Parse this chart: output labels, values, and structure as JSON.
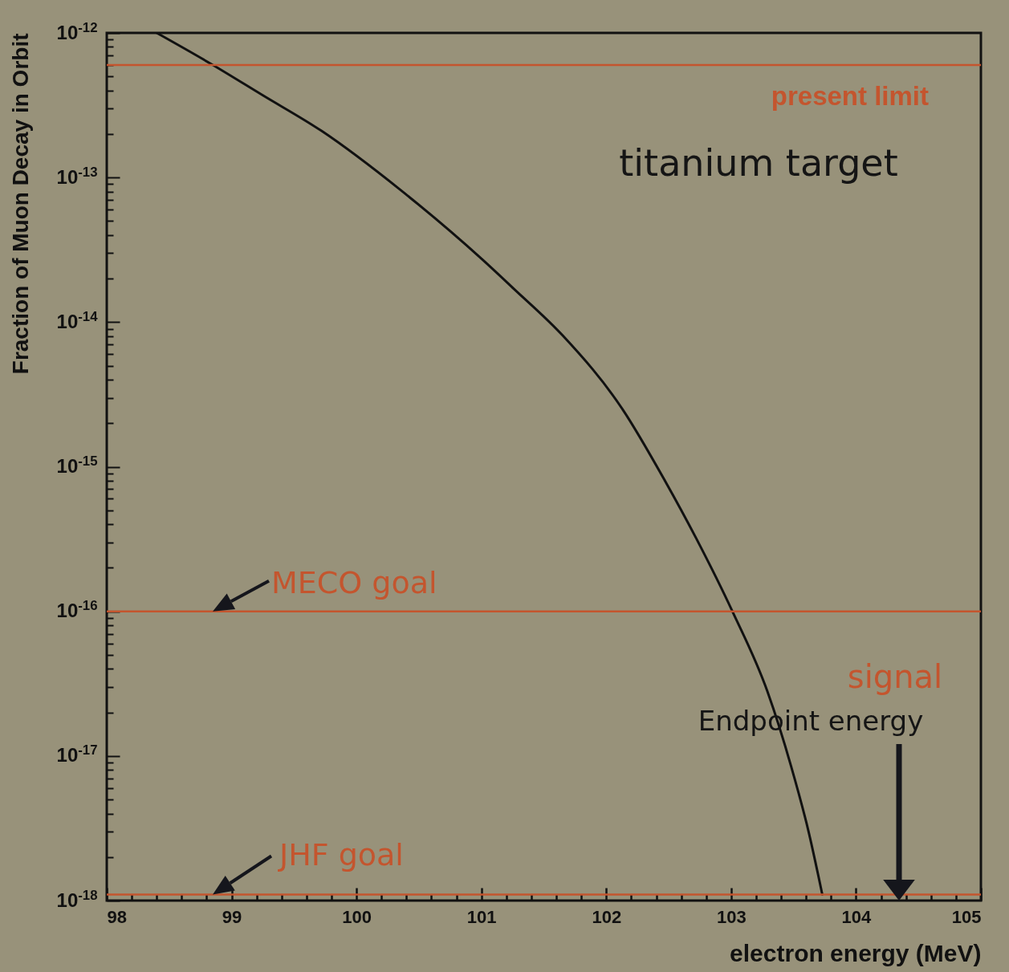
{
  "chart_data": {
    "type": "line",
    "xlabel": "electron energy (MeV)",
    "ylabel": "Fraction of Muon Decay in Orbit",
    "log": "y",
    "grid": false,
    "x": [
      98.4,
      98.85,
      99.25,
      99.72,
      100.36,
      101.01,
      101.26,
      101.65,
      102.13,
      102.47,
      102.72,
      103.01,
      103.29,
      103.48,
      103.62,
      103.73
    ],
    "series": [
      {
        "color": "#111111",
        "values": [
          1e-12,
          6e-13,
          3.7e-13,
          2.1e-13,
          8.1e-14,
          2.7e-14,
          1.7e-14,
          8.1e-15,
          2.5e-15,
          8e-16,
          3.2e-16,
          1e-16,
          2.8e-17,
          8.5e-18,
          3e-18,
          1.1e-18
        ]
      }
    ],
    "xlim": [
      98,
      105
    ],
    "xticks": [
      98,
      {
        "value": 98.2,
        "label": null
      },
      {
        "value": 98.4,
        "label": null
      },
      {
        "value": 98.6,
        "label": null
      },
      {
        "value": 98.8,
        "label": null
      },
      99,
      {
        "value": 99.2,
        "label": null
      },
      {
        "value": 99.4,
        "label": null
      },
      {
        "value": 99.6,
        "label": null
      },
      {
        "value": 99.8,
        "label": null
      },
      100,
      {
        "value": 100.2,
        "label": null
      },
      {
        "value": 100.4,
        "label": null
      },
      {
        "value": 100.6,
        "label": null
      },
      {
        "value": 100.8,
        "label": null
      },
      101,
      {
        "value": 101.2,
        "label": null
      },
      {
        "value": 101.4,
        "label": null
      },
      {
        "value": 101.6,
        "label": null
      },
      {
        "value": 101.8,
        "label": null
      },
      102,
      {
        "value": 102.2,
        "label": null
      },
      {
        "value": 102.4,
        "label": null
      },
      {
        "value": 102.6,
        "label": null
      },
      {
        "value": 102.8,
        "label": null
      },
      103,
      {
        "value": 103.2,
        "label": null
      },
      {
        "value": 103.4,
        "label": null
      },
      {
        "value": 103.6,
        "label": null
      },
      {
        "value": 103.8,
        "label": null
      },
      104,
      {
        "value": 104.2,
        "label": null
      },
      {
        "value": 104.4,
        "label": null
      },
      {
        "value": 104.6,
        "label": null
      },
      {
        "value": 104.8,
        "label": null
      },
      105
    ],
    "ylim": [
      1e-18,
      1e-12
    ],
    "yticks": [
      {
        "value": 1e-18,
        "label": "10$^{-18}$"
      },
      {
        "value": 2e-18,
        "label": null
      },
      {
        "value": 3e-18,
        "label": null
      },
      {
        "value": 4e-18,
        "label": null
      },
      {
        "value": 5e-18,
        "label": null
      },
      {
        "value": 6e-18,
        "label": null
      },
      {
        "value": 7e-18,
        "label": null
      },
      {
        "value": 8e-18,
        "label": null
      },
      {
        "value": 9e-18,
        "label": null
      },
      {
        "value": 1e-17,
        "label": "10$^{-17}$"
      },
      {
        "value": 2e-17,
        "label": null
      },
      {
        "value": 3e-17,
        "label": null
      },
      {
        "value": 4e-17,
        "label": null
      },
      {
        "value": 5e-17,
        "label": null
      },
      {
        "value": 6e-17,
        "label": null
      },
      {
        "value": 7e-17,
        "label": null
      },
      {
        "value": 8e-17,
        "label": null
      },
      {
        "value": 9e-17,
        "label": null
      },
      {
        "value": 1e-16,
        "label": "10$^{-16}$"
      },
      {
        "value": 2e-16,
        "label": null
      },
      {
        "value": 3e-16,
        "label": null
      },
      {
        "value": 4e-16,
        "label": null
      },
      {
        "value": 5e-16,
        "label": null
      },
      {
        "value": 6e-16,
        "label": null
      },
      {
        "value": 7e-16,
        "label": null
      },
      {
        "value": 8e-16,
        "label": null
      },
      {
        "value": 9e-16,
        "label": null
      },
      {
        "value": 1e-15,
        "label": "10$^{-15}$"
      },
      {
        "value": 2e-15,
        "label": null
      },
      {
        "value": 3e-15,
        "label": null
      },
      {
        "value": 4e-15,
        "label": null
      },
      {
        "value": 5e-15,
        "label": null
      },
      {
        "value": 6e-15,
        "label": null
      },
      {
        "value": 7e-15,
        "label": null
      },
      {
        "value": 8e-15,
        "label": null
      },
      {
        "value": 9e-15,
        "label": null
      },
      {
        "value": 1e-14,
        "label": "10$^{-14}$"
      },
      {
        "value": 2e-14,
        "label": null
      },
      {
        "value": 3e-14,
        "label": null
      },
      {
        "value": 4e-14,
        "label": null
      },
      {
        "value": 5e-14,
        "label": null
      },
      {
        "value": 6e-14,
        "label": null
      },
      {
        "value": 7e-14,
        "label": null
      },
      {
        "value": 8e-14,
        "label": null
      },
      {
        "value": 9e-14,
        "label": null
      },
      {
        "value": 1e-13,
        "label": "10$^{-13}$"
      },
      {
        "value": 2e-13,
        "label": null
      },
      {
        "value": 3e-13,
        "label": null
      },
      {
        "value": 4e-13,
        "label": null
      },
      {
        "value": 5e-13,
        "label": null
      },
      {
        "value": 6e-13,
        "label": null
      },
      {
        "value": 7e-13,
        "label": null
      },
      {
        "value": 8e-13,
        "label": null
      },
      {
        "value": 9e-13,
        "label": null
      },
      {
        "value": 1e-12,
        "label": "10$^{-12}$"
      }
    ],
    "ref_lines": [
      {
        "axis": "y",
        "value": 6e-13,
        "label": "present limit",
        "color": "#c4552e"
      },
      {
        "axis": "y",
        "value": 1e-16,
        "label": "MECO goal",
        "color": "#c4552e"
      },
      {
        "axis": "y",
        "value": 1.1e-18,
        "label": "JHF goal",
        "color": "#c4552e"
      }
    ],
    "annotations": [
      "titanium target",
      "signal",
      "Endpoint energy"
    ]
  }
}
